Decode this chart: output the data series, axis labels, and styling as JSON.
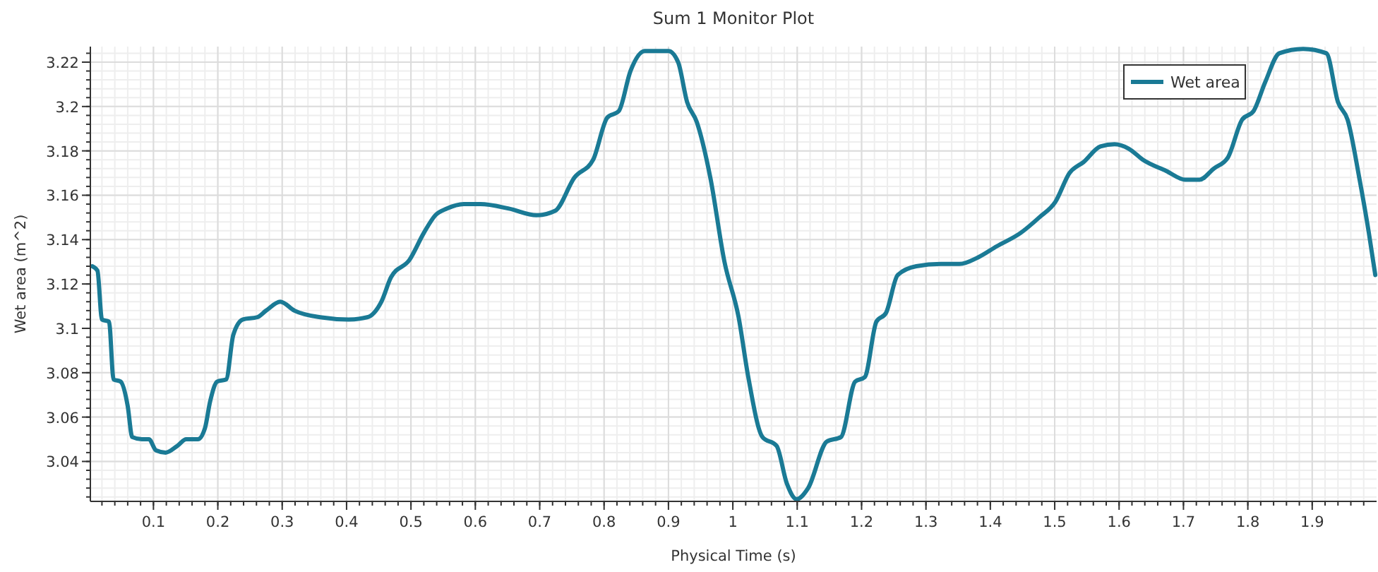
{
  "chart_data": {
    "type": "line",
    "title": "Sum 1 Monitor Plot",
    "xlabel": "Physical Time (s)",
    "ylabel": "Wet area (m^2)",
    "xlim": [
      0.002,
      2.0
    ],
    "ylim": [
      3.022,
      3.227
    ],
    "xticks": [
      0.1,
      0.2,
      0.3,
      0.4,
      0.5,
      0.6,
      0.7,
      0.8,
      0.9,
      1,
      1.1,
      1.2,
      1.3,
      1.4,
      1.5,
      1.6,
      1.7,
      1.8,
      1.9
    ],
    "yticks": [
      3.04,
      3.06,
      3.08,
      3.1,
      3.12,
      3.14,
      3.16,
      3.18,
      3.2,
      3.22
    ],
    "grid": true,
    "legend": "top right",
    "marker": "none",
    "line_style": "solid",
    "series": [
      {
        "name": "Wet area",
        "color": "#1a7a95",
        "x": [
          0.005,
          0.013,
          0.02,
          0.031,
          0.038,
          0.049,
          0.06,
          0.067,
          0.082,
          0.093,
          0.104,
          0.119,
          0.137,
          0.151,
          0.169,
          0.18,
          0.188,
          0.199,
          0.213,
          0.224,
          0.239,
          0.261,
          0.275,
          0.297,
          0.319,
          0.359,
          0.403,
          0.432,
          0.454,
          0.469,
          0.498,
          0.52,
          0.538,
          0.556,
          0.582,
          0.608,
          0.652,
          0.695,
          0.724,
          0.754,
          0.783,
          0.805,
          0.823,
          0.841,
          0.863,
          0.9,
          0.915,
          0.929,
          0.944,
          0.965,
          0.987,
          1.009,
          1.024,
          1.046,
          1.068,
          1.084,
          1.099,
          1.117,
          1.146,
          1.168,
          1.19,
          1.205,
          1.223,
          1.238,
          1.256,
          1.285,
          1.323,
          1.352,
          1.381,
          1.41,
          1.447,
          1.476,
          1.501,
          1.523,
          1.545,
          1.571,
          1.593,
          1.615,
          1.637,
          1.673,
          1.703,
          1.725,
          1.747,
          1.769,
          1.791,
          1.809,
          1.827,
          1.849,
          1.886,
          1.922,
          1.94,
          1.955,
          1.973,
          1.988,
          1.998
        ],
        "values": [
          3.128,
          3.126,
          3.104,
          3.103,
          3.077,
          3.076,
          3.065,
          3.051,
          3.05,
          3.05,
          3.045,
          3.044,
          3.047,
          3.05,
          3.05,
          3.055,
          3.067,
          3.076,
          3.077,
          3.097,
          3.104,
          3.105,
          3.108,
          3.112,
          3.108,
          3.105,
          3.104,
          3.105,
          3.112,
          3.123,
          3.131,
          3.143,
          3.151,
          3.154,
          3.156,
          3.156,
          3.154,
          3.151,
          3.153,
          3.168,
          3.176,
          3.195,
          3.198,
          3.216,
          3.225,
          3.225,
          3.22,
          3.202,
          3.193,
          3.168,
          3.13,
          3.105,
          3.078,
          3.051,
          3.047,
          3.03,
          3.023,
          3.028,
          3.049,
          3.051,
          3.076,
          3.078,
          3.103,
          3.107,
          3.124,
          3.128,
          3.129,
          3.129,
          3.132,
          3.137,
          3.143,
          3.15,
          3.157,
          3.17,
          3.175,
          3.182,
          3.183,
          3.181,
          3.176,
          3.171,
          3.167,
          3.167,
          3.172,
          3.177,
          3.194,
          3.198,
          3.211,
          3.224,
          3.226,
          3.224,
          3.202,
          3.194,
          3.168,
          3.143,
          3.124
        ]
      }
    ]
  }
}
